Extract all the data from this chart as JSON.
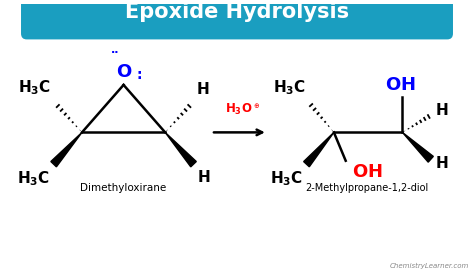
{
  "title": "Epoxide Hydrolysis",
  "title_bg_color": "#1a9ec0",
  "title_text_color": "white",
  "bg_color": "white",
  "label_dimethyloxirane": "Dimethyloxirane",
  "label_product": "2-Methylpropane-1,2-diol",
  "watermark": "ChemistryLearner.com"
}
